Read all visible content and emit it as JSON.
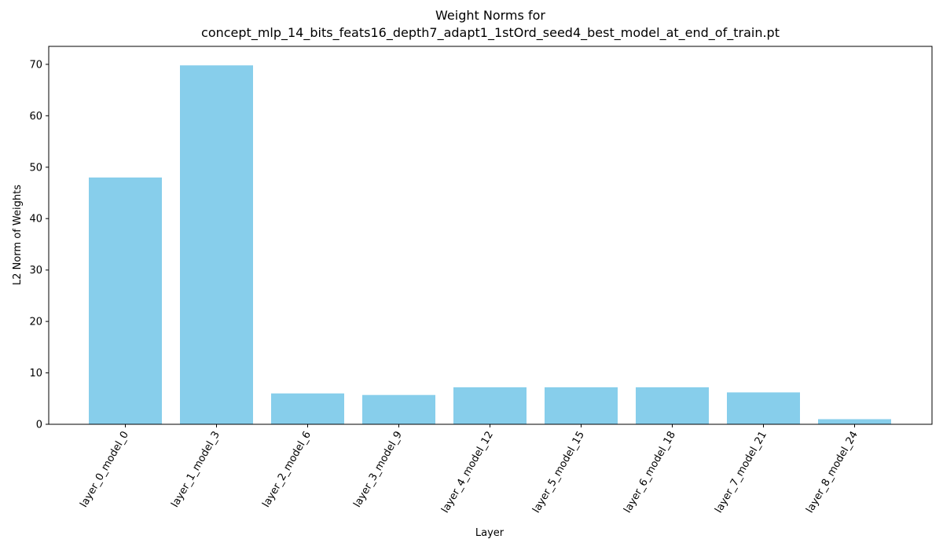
{
  "chart_data": {
    "type": "bar",
    "title_line1": "Weight Norms for",
    "title_line2": "concept_mlp_14_bits_feats16_depth7_adapt1_1stOrd_seed4_best_model_at_end_of_train.pt",
    "xlabel": "Layer",
    "ylabel": "L2 Norm of Weights",
    "categories": [
      "layer_0_model_0",
      "layer_1_model_3",
      "layer_2_model_6",
      "layer_3_model_9",
      "layer_4_model_12",
      "layer_5_model_15",
      "layer_6_model_18",
      "layer_7_model_21",
      "layer_8_model_24"
    ],
    "values": [
      48.0,
      69.8,
      6.0,
      5.7,
      7.2,
      7.2,
      7.2,
      6.2,
      1.0
    ],
    "ylim": [
      0,
      73.5
    ],
    "yticks": [
      0,
      10,
      20,
      30,
      40,
      50,
      60,
      70
    ],
    "grid": false,
    "bar_color": "#87ceeb"
  }
}
